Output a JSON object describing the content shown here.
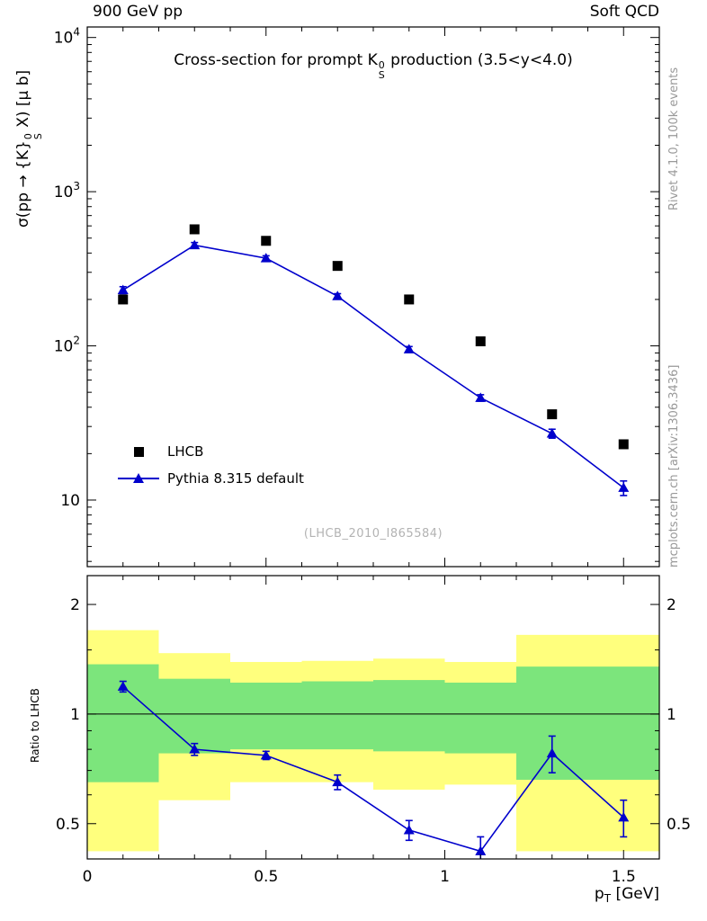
{
  "header": {
    "left": "900 GeV pp",
    "right": "Soft QCD"
  },
  "side_notes": {
    "top": "Rivet 4.1.0, 100k events",
    "bottom": "mcplots.cern.ch [arXiv:1306.3436]"
  },
  "title": {
    "pre": "Cross-section for prompt K",
    "sup": "0",
    "sub": "S",
    "post": " production (3.5<y<4.0)"
  },
  "axes": {
    "ylabel": {
      "pre": "σ(pp → {K}",
      "sup": "0",
      "sub": "S",
      "post": " X) [μ b]"
    },
    "ratio_ylabel": "Ratio to LHCB",
    "xlabel": {
      "pre": "p",
      "sub": "T",
      "post": " [GeV]"
    }
  },
  "watermark": "(LHCB_2010_I865584)",
  "legend": [
    {
      "label": "LHCB",
      "marker": "square",
      "color": "#000000"
    },
    {
      "label": "Pythia 8.315 default",
      "marker": "triangle-line",
      "color": "#0000cc"
    }
  ],
  "chart_data": {
    "type": "line",
    "x": [
      0.1,
      0.3,
      0.5,
      0.7,
      0.9,
      1.1,
      1.3,
      1.5
    ],
    "bin_edges": [
      0,
      0.2,
      0.4,
      0.6,
      0.8,
      1.0,
      1.2,
      1.4,
      1.6
    ],
    "series": [
      {
        "name": "LHCB",
        "marker": "square",
        "color": "#000000",
        "values": [
          200,
          570,
          480,
          330,
          200,
          107,
          36,
          23
        ]
      },
      {
        "name": "Pythia 8.315 default",
        "marker": "triangle",
        "color": "#0000cc",
        "values": [
          230,
          450,
          370,
          210,
          95,
          46,
          27,
          12
        ],
        "yerr": [
          12,
          18,
          14,
          8,
          4,
          2.2,
          1.8,
          1.3
        ]
      }
    ],
    "main_axis": {
      "xlim": [
        0,
        1.6
      ],
      "xticks": [
        0,
        0.5,
        1,
        1.5
      ],
      "ylim": [
        3.7,
        11700
      ],
      "yticks": [
        10,
        100,
        1000,
        10000
      ],
      "log_y": true,
      "grid": false,
      "legend_position": "center-left"
    },
    "ratio": {
      "label": "Ratio to LHCB",
      "values": [
        1.19,
        0.8,
        0.77,
        0.65,
        0.48,
        0.42,
        0.78,
        0.52
      ],
      "yerr": [
        0.04,
        0.03,
        0.02,
        0.03,
        0.03,
        0.04,
        0.09,
        0.06
      ],
      "ylim": [
        0.4,
        2.4
      ],
      "yticks": [
        0.5,
        1,
        2
      ],
      "log_y": true,
      "bands": {
        "yellow": [
          [
            0.42,
            1.7
          ],
          [
            0.58,
            1.47
          ],
          [
            0.65,
            1.39
          ],
          [
            0.65,
            1.4
          ],
          [
            0.62,
            1.42
          ],
          [
            0.64,
            1.39
          ],
          [
            0.42,
            1.65
          ],
          [
            0.42,
            1.65
          ]
        ],
        "green": [
          [
            0.65,
            1.37
          ],
          [
            0.78,
            1.25
          ],
          [
            0.8,
            1.22
          ],
          [
            0.8,
            1.23
          ],
          [
            0.79,
            1.24
          ],
          [
            0.78,
            1.22
          ],
          [
            0.66,
            1.35
          ],
          [
            0.66,
            1.35
          ]
        ]
      },
      "colors": {
        "yellow": "#ffff7d",
        "green": "#7ce57c"
      }
    }
  }
}
